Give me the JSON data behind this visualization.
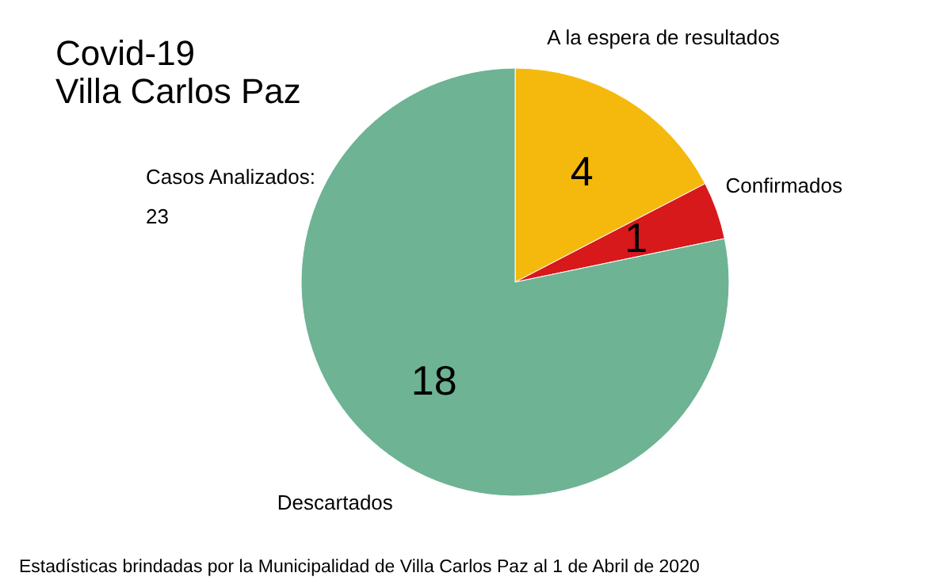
{
  "chart_data": {
    "type": "pie",
    "title": "Covid-19",
    "subtitle": "Villa Carlos Paz",
    "categories": [
      "A la espera de resultados",
      "Confirmados",
      "Descartados"
    ],
    "values": [
      4,
      1,
      18
    ],
    "colors": [
      "#f5b90d",
      "#d7191c",
      "#6db394"
    ],
    "data_labels": true,
    "legend": false,
    "annotations": [
      "Casos Analizados:",
      "23",
      "Estadísticas brindadas por la Municipalidad de Villa Carlos Paz al 1 de Abril de 2020"
    ]
  }
}
